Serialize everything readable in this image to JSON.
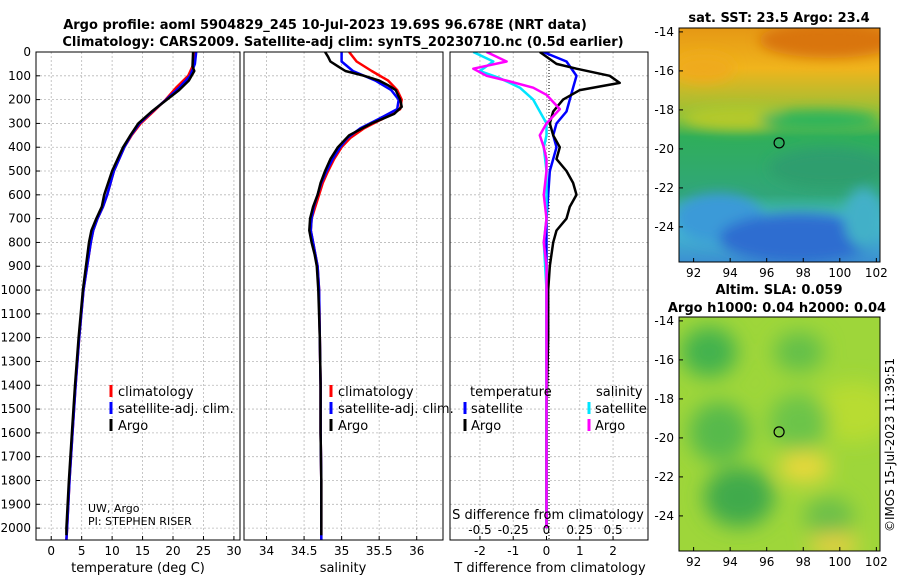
{
  "header": {
    "title_line1": "Argo profile: aoml 5904829_245 10-Jul-2023 19.69S 96.678E (NRT data)",
    "title_line2": "Climatology: CARS2009. Satellite-adj clim: synTS_20230710.nc (0.5d earlier)"
  },
  "colors": {
    "climatology": "#ff0000",
    "satellite": "#0000ff",
    "argo": "#000000",
    "sal_satellite": "#00e5ff",
    "sal_argo": "#ff00ff"
  },
  "chart_data": [
    {
      "type": "line",
      "name": "temperature-profile",
      "xlabel": "temperature (deg C)",
      "ylabel": "",
      "xlim": [
        -2.5,
        31
      ],
      "ylim": [
        2050,
        0
      ],
      "xticks": [
        "0",
        "5",
        "10",
        "15",
        "20",
        "25",
        "30"
      ],
      "xtick_values": [
        0,
        5,
        10,
        15,
        20,
        25,
        30
      ],
      "yticks": [
        "0",
        "100",
        "200",
        "300",
        "400",
        "500",
        "600",
        "700",
        "800",
        "900",
        "1000",
        "1100",
        "1200",
        "1300",
        "1400",
        "1500",
        "1600",
        "1700",
        "1800",
        "1900",
        "2000"
      ],
      "ytick_values": [
        0,
        100,
        200,
        300,
        400,
        500,
        600,
        700,
        800,
        900,
        1000,
        1100,
        1200,
        1300,
        1400,
        1500,
        1600,
        1700,
        1800,
        1900,
        2000
      ],
      "legend": [
        "climatology",
        "satellite-adj. clim.",
        "Argo"
      ],
      "annotation_line1": "UW, Argo",
      "annotation_line2": "PI: STEPHEN RISER",
      "series": [
        {
          "name": "climatology",
          "depth": [
            0,
            50,
            100,
            150,
            200,
            250,
            300,
            350,
            400,
            500,
            600,
            650,
            700,
            750,
            800,
            1000,
            1200,
            1400,
            1600,
            1800,
            2000,
            2050
          ],
          "values": [
            23.6,
            23.4,
            22.5,
            20.5,
            18.8,
            16.8,
            14.7,
            13.2,
            12.0,
            10.3,
            9.2,
            8.5,
            7.6,
            6.9,
            6.5,
            5.3,
            4.6,
            4.0,
            3.5,
            3.0,
            2.6,
            2.5
          ]
        },
        {
          "name": "satellite-adj. clim.",
          "depth": [
            0,
            50,
            100,
            150,
            200,
            250,
            300,
            350,
            400,
            500,
            600,
            650,
            700,
            750,
            800,
            1000,
            1200,
            1400,
            1600,
            1800,
            2000,
            2050
          ],
          "values": [
            23.8,
            23.6,
            22.8,
            21.0,
            18.9,
            16.6,
            14.5,
            13.1,
            12.0,
            10.3,
            9.2,
            8.5,
            7.6,
            6.9,
            6.5,
            5.3,
            4.6,
            4.0,
            3.5,
            3.0,
            2.6,
            2.5
          ]
        },
        {
          "name": "Argo",
          "depth": [
            0,
            60,
            80,
            120,
            160,
            200,
            250,
            300,
            350,
            400,
            500,
            600,
            650,
            700,
            750,
            800,
            1000,
            1200,
            1400,
            1600,
            1800,
            2000,
            2030
          ],
          "values": [
            23.3,
            23.2,
            23.5,
            22.6,
            21.0,
            19.0,
            16.5,
            14.3,
            13.0,
            11.8,
            10.0,
            8.7,
            8.3,
            7.4,
            6.6,
            6.2,
            5.2,
            4.5,
            3.9,
            3.4,
            2.9,
            2.5,
            2.5
          ]
        }
      ]
    },
    {
      "type": "line",
      "name": "salinity-profile",
      "xlabel": "salinity",
      "xlim": [
        33.7,
        36.35
      ],
      "ylim": [
        2050,
        0
      ],
      "xticks": [
        "34",
        "34.5",
        "35",
        "35.5",
        "36"
      ],
      "xtick_values": [
        34,
        34.5,
        35,
        35.5,
        36
      ],
      "legend": [
        "climatology",
        "satellite-adj. clim.",
        "Argo"
      ],
      "series": [
        {
          "name": "climatology",
          "depth": [
            0,
            40,
            80,
            120,
            160,
            200,
            240,
            280,
            320,
            360,
            400,
            450,
            500,
            550,
            600,
            650,
            700,
            750,
            800,
            900,
            1000,
            1200,
            1400,
            1600,
            1800,
            2000,
            2050
          ],
          "values": [
            35.1,
            35.2,
            35.4,
            35.62,
            35.74,
            35.8,
            35.78,
            35.55,
            35.3,
            35.12,
            35.0,
            34.9,
            34.82,
            34.75,
            34.7,
            34.65,
            34.6,
            34.59,
            34.62,
            34.68,
            34.7,
            34.71,
            34.72,
            34.72,
            34.73,
            34.73,
            34.73
          ]
        },
        {
          "name": "satellite-adj. clim.",
          "depth": [
            0,
            40,
            80,
            120,
            160,
            200,
            240,
            280,
            320,
            360,
            400,
            450,
            500,
            550,
            600,
            650,
            700,
            750,
            800,
            900,
            1000,
            1200,
            1400,
            1600,
            1800,
            2000,
            2050
          ],
          "values": [
            35.0,
            35.0,
            35.15,
            35.45,
            35.66,
            35.76,
            35.74,
            35.5,
            35.25,
            35.08,
            34.98,
            34.88,
            34.8,
            34.73,
            34.68,
            34.63,
            34.6,
            34.59,
            34.62,
            34.68,
            34.7,
            34.71,
            34.72,
            34.72,
            34.73,
            34.73,
            34.73
          ]
        },
        {
          "name": "Argo",
          "depth": [
            0,
            20,
            40,
            60,
            80,
            100,
            120,
            140,
            160,
            200,
            230,
            260,
            300,
            350,
            400,
            450,
            500,
            550,
            600,
            650,
            700,
            750,
            800,
            850,
            900,
            1000,
            1200,
            1400,
            1600,
            1800,
            2000,
            2030
          ],
          "values": [
            34.78,
            34.82,
            34.85,
            34.95,
            35.05,
            35.3,
            35.5,
            35.62,
            35.72,
            35.78,
            35.8,
            35.7,
            35.4,
            35.1,
            34.95,
            34.85,
            34.78,
            34.72,
            34.68,
            34.62,
            34.58,
            34.57,
            34.6,
            34.64,
            34.67,
            34.69,
            34.71,
            34.72,
            34.72,
            34.73,
            34.73,
            34.73
          ]
        }
      ]
    },
    {
      "type": "line",
      "name": "difference-from-climatology",
      "xlabel": "T difference from climatology",
      "xlabel_top": "S difference from climatology",
      "xlim": [
        -2.9,
        3.05
      ],
      "ylim": [
        2050,
        0
      ],
      "xticks": [
        "-2",
        "-1",
        "0",
        "1",
        "2"
      ],
      "xtick_values": [
        -2,
        -1,
        0,
        1,
        2
      ],
      "sticks": [
        "-0.5",
        "-0.25",
        "0",
        "0.25",
        "0.5"
      ],
      "stick_values": [
        -0.5,
        -0.25,
        0,
        0.25,
        0.5
      ],
      "legend_t_title": "temperature",
      "legend_s_title": "salinity",
      "legend_t": [
        "satellite",
        "Argo"
      ],
      "legend_s": [
        "satellite",
        "Argo"
      ],
      "series": [
        {
          "name": "T satellite",
          "depth": [
            0,
            40,
            80,
            100,
            150,
            200,
            250,
            300,
            350,
            400,
            450,
            500,
            600,
            700,
            800,
            1000,
            1500,
            2000
          ],
          "values": [
            -0.1,
            0.6,
            0.8,
            0.9,
            0.8,
            0.7,
            0.6,
            0.3,
            0.2,
            0.3,
            0.2,
            0.1,
            0.05,
            0.0,
            0.0,
            0.0,
            0.0,
            0.0
          ]
        },
        {
          "name": "T Argo",
          "depth": [
            0,
            50,
            70,
            100,
            130,
            160,
            200,
            250,
            300,
            350,
            400,
            450,
            500,
            550,
            600,
            650,
            700,
            750,
            800,
            900,
            1000,
            1200,
            1500,
            1800,
            2000
          ],
          "values": [
            -0.2,
            0.3,
            0.9,
            1.9,
            2.2,
            1.0,
            0.5,
            0.2,
            0.1,
            0.2,
            0.4,
            0.3,
            0.6,
            0.8,
            0.9,
            0.7,
            0.6,
            0.3,
            0.2,
            0.1,
            0.05,
            0.05,
            0.0,
            0.0,
            0.0
          ]
        },
        {
          "name": "S satellite",
          "depth": [
            0,
            40,
            80,
            110,
            150,
            200,
            250,
            300,
            350,
            400,
            500,
            600,
            700,
            800,
            1000,
            1500,
            2000
          ],
          "values": [
            -0.55,
            -0.4,
            -0.5,
            -0.35,
            -0.2,
            -0.1,
            -0.05,
            0.0,
            0.0,
            -0.02,
            0.0,
            0.0,
            0.0,
            -0.02,
            0.0,
            0.0,
            0.0
          ]
        },
        {
          "name": "S Argo",
          "depth": [
            0,
            40,
            70,
            100,
            120,
            150,
            180,
            210,
            240,
            270,
            300,
            350,
            400,
            450,
            500,
            600,
            700,
            800,
            900,
            1000,
            1200,
            1500,
            2000
          ],
          "values": [
            -0.45,
            -0.3,
            -0.55,
            -0.45,
            -0.3,
            -0.1,
            0.0,
            0.05,
            0.1,
            0.05,
            0.0,
            -0.05,
            -0.02,
            0.0,
            0.0,
            -0.02,
            0.0,
            -0.02,
            0.0,
            0.0,
            0.0,
            0.0,
            0.0
          ]
        }
      ]
    },
    {
      "type": "heatmap",
      "name": "sat-sst-map",
      "title": "sat. SST: 23.5 Argo: 23.4",
      "xlim": [
        91.2,
        102.2
      ],
      "ylim": [
        -25.8,
        -13.8
      ],
      "xticks": [
        "92",
        "94",
        "96",
        "98",
        "100",
        "102"
      ],
      "xtick_values": [
        92,
        94,
        96,
        98,
        100,
        102
      ],
      "yticks": [
        "-14",
        "-16",
        "-18",
        "-20",
        "-22",
        "-24"
      ],
      "ytick_values": [
        -14,
        -16,
        -18,
        -20,
        -22,
        -24
      ],
      "marker": [
        96.678,
        -19.69
      ]
    },
    {
      "type": "heatmap",
      "name": "altim-sla-map",
      "title_line1": "Altim. SLA: 0.059",
      "title_line2": "Argo h1000: 0.04 h2000: 0.04",
      "xlim": [
        91.2,
        102.2
      ],
      "ylim": [
        -25.8,
        -13.8
      ],
      "xticks": [
        "92",
        "94",
        "96",
        "98",
        "100",
        "102"
      ],
      "xtick_values": [
        92,
        94,
        96,
        98,
        100,
        102
      ],
      "yticks": [
        "-14",
        "-16",
        "-18",
        "-20",
        "-22",
        "-24"
      ],
      "ytick_values": [
        -14,
        -16,
        -18,
        -20,
        -22,
        -24
      ],
      "marker": [
        96.678,
        -19.69
      ]
    }
  ],
  "side_label": "©IMOS 15-Jul-2023 11:39:51"
}
